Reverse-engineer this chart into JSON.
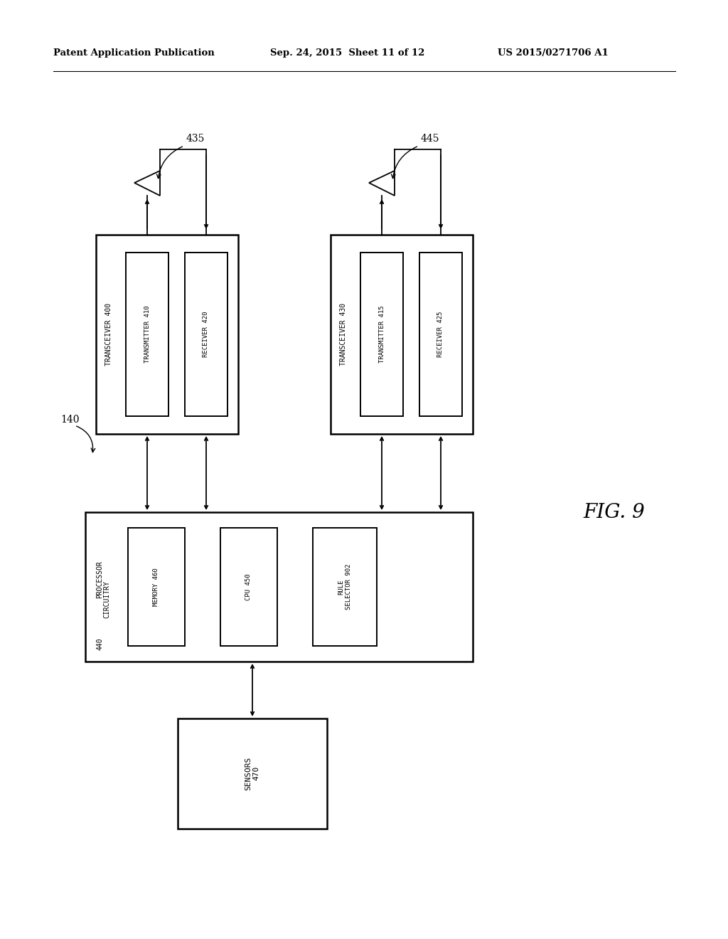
{
  "bg_color": "#ffffff",
  "header_left": "Patent Application Publication",
  "header_mid": "Sep. 24, 2015  Sheet 11 of 12",
  "header_right": "US 2015/0271706 A1",
  "fig_label": "FIG. 9",
  "label_140": "140",
  "label_435": "435",
  "label_445": "445",
  "transceiver400_label": "TRANSCEIVER 400",
  "transmitter410_label": "TRANSMITTER 410",
  "receiver420_label": "RECEIVER 420",
  "transceiver430_label": "TRANSCEIVER 430",
  "transmitter415_label": "TRANSMITTER 415",
  "receiver425_label": "RECEIVER 425",
  "processor_label": "PROCESSOR\nCIRCUITRY",
  "processor_num": "440",
  "memory_label": "MEMORY 460",
  "cpu_label": "CPU 450",
  "rule_label": "RULE\nSELECTOR 902",
  "sensors_label": "SENSORS\n470"
}
